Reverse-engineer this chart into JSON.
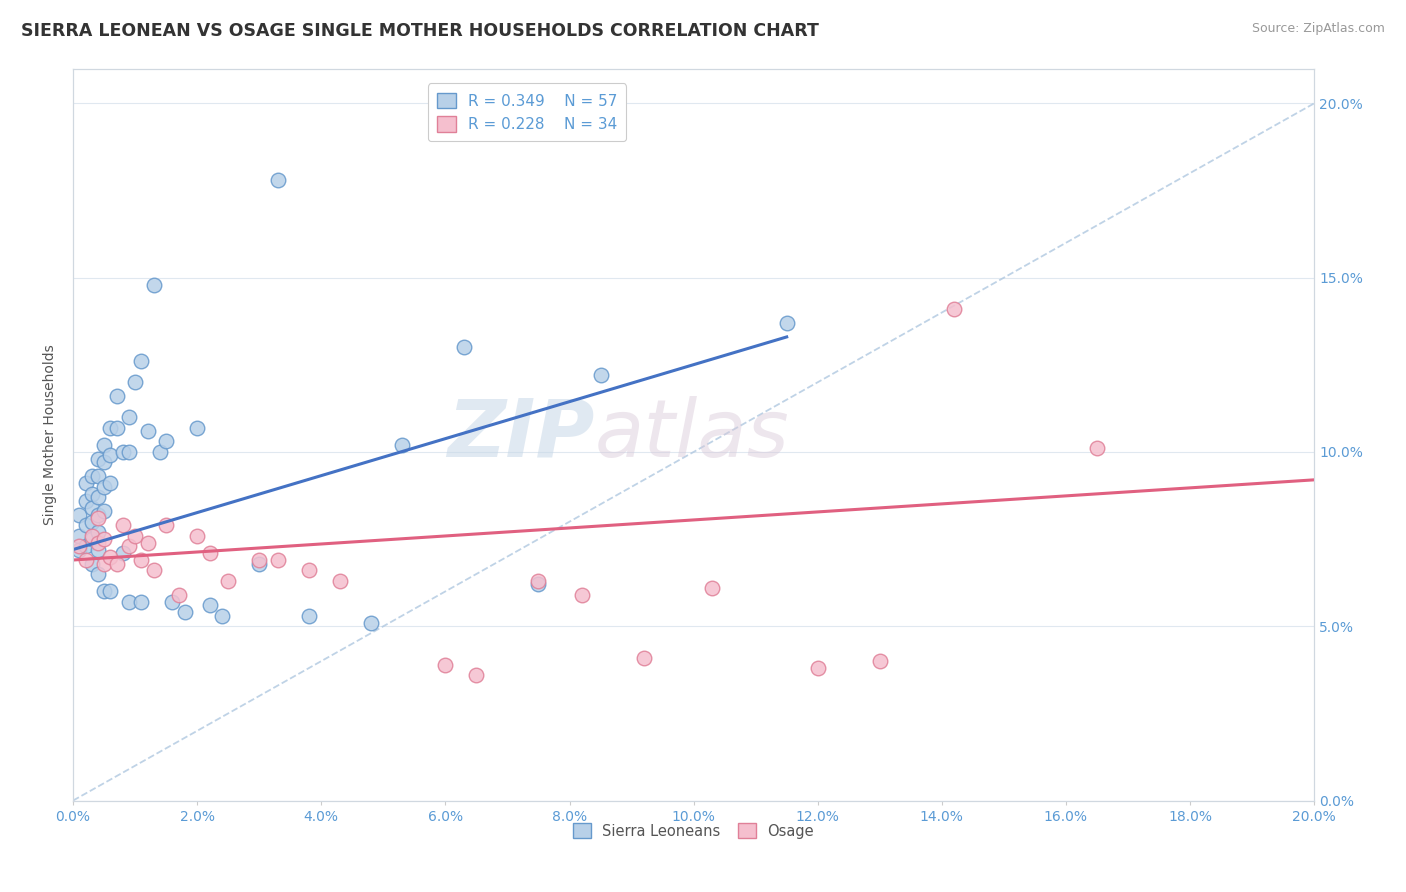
{
  "title": "SIERRA LEONEAN VS OSAGE SINGLE MOTHER HOUSEHOLDS CORRELATION CHART",
  "source": "Source: ZipAtlas.com",
  "ylabel": "Single Mother Households",
  "xmin": 0.0,
  "xmax": 0.2,
  "ymin": 0.0,
  "ymax": 0.21,
  "ytick_vals": [
    0.0,
    0.05,
    0.1,
    0.15,
    0.2
  ],
  "xtick_vals": [
    0.0,
    0.02,
    0.04,
    0.06,
    0.08,
    0.1,
    0.12,
    0.14,
    0.16,
    0.18,
    0.2
  ],
  "legend_r1": "R = 0.349",
  "legend_n1": "N = 57",
  "legend_r2": "R = 0.228",
  "legend_n2": "N = 34",
  "blue_color": "#b8d0e8",
  "blue_edge": "#6699cc",
  "pink_color": "#f5bfce",
  "pink_edge": "#e08098",
  "blue_line_color": "#4472c4",
  "pink_line_color": "#e06080",
  "diag_line_color": "#b0c8e0",
  "watermark_zip": "ZIP",
  "watermark_atlas": "atlas",
  "blue_scatter_x": [
    0.001,
    0.001,
    0.001,
    0.002,
    0.002,
    0.002,
    0.002,
    0.003,
    0.003,
    0.003,
    0.003,
    0.003,
    0.003,
    0.004,
    0.004,
    0.004,
    0.004,
    0.004,
    0.004,
    0.004,
    0.005,
    0.005,
    0.005,
    0.005,
    0.005,
    0.006,
    0.006,
    0.006,
    0.006,
    0.007,
    0.007,
    0.008,
    0.008,
    0.009,
    0.009,
    0.009,
    0.01,
    0.011,
    0.011,
    0.012,
    0.013,
    0.014,
    0.015,
    0.016,
    0.018,
    0.02,
    0.022,
    0.024,
    0.03,
    0.033,
    0.038,
    0.048,
    0.053,
    0.063,
    0.075,
    0.085,
    0.115
  ],
  "blue_scatter_y": [
    0.082,
    0.076,
    0.072,
    0.091,
    0.086,
    0.079,
    0.073,
    0.093,
    0.088,
    0.084,
    0.08,
    0.075,
    0.068,
    0.098,
    0.093,
    0.087,
    0.082,
    0.077,
    0.072,
    0.065,
    0.102,
    0.097,
    0.09,
    0.083,
    0.06,
    0.107,
    0.099,
    0.091,
    0.06,
    0.116,
    0.107,
    0.1,
    0.071,
    0.11,
    0.1,
    0.057,
    0.12,
    0.126,
    0.057,
    0.106,
    0.148,
    0.1,
    0.103,
    0.057,
    0.054,
    0.107,
    0.056,
    0.053,
    0.068,
    0.178,
    0.053,
    0.051,
    0.102,
    0.13,
    0.062,
    0.122,
    0.137
  ],
  "pink_scatter_x": [
    0.001,
    0.002,
    0.003,
    0.004,
    0.004,
    0.005,
    0.005,
    0.006,
    0.007,
    0.008,
    0.009,
    0.01,
    0.011,
    0.012,
    0.013,
    0.015,
    0.017,
    0.02,
    0.022,
    0.025,
    0.03,
    0.033,
    0.038,
    0.043,
    0.06,
    0.065,
    0.075,
    0.082,
    0.092,
    0.103,
    0.12,
    0.13,
    0.142,
    0.165
  ],
  "pink_scatter_y": [
    0.073,
    0.069,
    0.076,
    0.081,
    0.074,
    0.075,
    0.068,
    0.07,
    0.068,
    0.079,
    0.073,
    0.076,
    0.069,
    0.074,
    0.066,
    0.079,
    0.059,
    0.076,
    0.071,
    0.063,
    0.069,
    0.069,
    0.066,
    0.063,
    0.039,
    0.036,
    0.063,
    0.059,
    0.041,
    0.061,
    0.038,
    0.04,
    0.141,
    0.101
  ],
  "blue_line_x0": 0.0,
  "blue_line_x1": 0.115,
  "blue_line_y0": 0.072,
  "blue_line_y1": 0.133,
  "pink_line_x0": 0.0,
  "pink_line_x1": 0.2,
  "pink_line_y0": 0.069,
  "pink_line_y1": 0.092
}
